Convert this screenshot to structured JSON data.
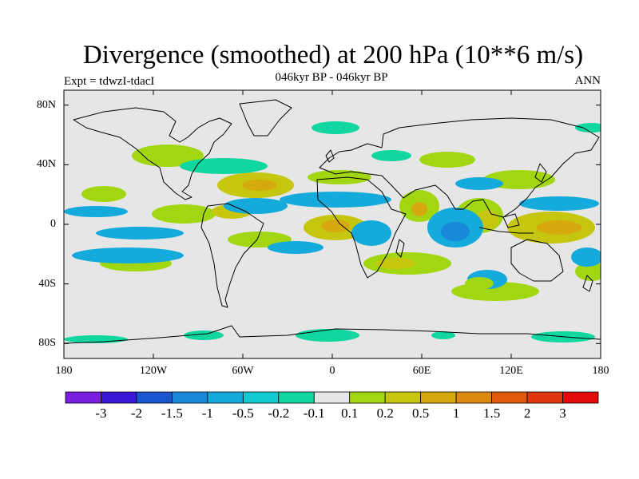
{
  "title": "Divergence (smoothed) at 200 hPa (10**6 m/s)",
  "subtitle": "046kyr BP - 046kyr BP",
  "left_string": "Expt = tdwzI-tdacI",
  "right_string": "ANN",
  "lat_labels": [
    "80N",
    "40N",
    "0",
    "40S",
    "80S"
  ],
  "lon_labels": [
    "180",
    "120W",
    "60W",
    "0",
    "60E",
    "120E",
    "180"
  ],
  "colorbar": {
    "colors": [
      "#7a1fe0",
      "#3a17d6",
      "#1a55d0",
      "#1a88d8",
      "#14aadc",
      "#12cad0",
      "#10d6a0",
      "#e6e6e6",
      "#a2d610",
      "#c6c60e",
      "#d6aa0e",
      "#dd880e",
      "#e05a0e",
      "#e0380e",
      "#e00a0a"
    ],
    "labels": [
      "-3",
      "-2",
      "-1.5",
      "-1",
      "-0.5",
      "-0.2",
      "-0.1",
      "0.1",
      "0.2",
      "0.5",
      "1",
      "1.5",
      "2",
      "3"
    ]
  },
  "map_colors": {
    "background": "#e6e6e6",
    "neg_weak": "#10d6a0",
    "neg_mid": "#14aadc",
    "neg_strong": "#1a88d8",
    "pos_weak": "#a2d610",
    "pos_mid": "#c6c60e",
    "pos_strong": "#d6aa0e"
  }
}
